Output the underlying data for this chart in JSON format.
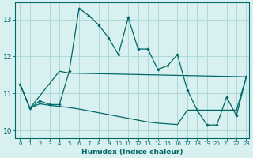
{
  "title": "",
  "xlabel": "Humidex (Indice chaleur)",
  "ylabel": "",
  "bg_color": "#d8f0f0",
  "grid_color": "#b0d8d8",
  "line_color": "#006868",
  "x_min": -0.5,
  "x_max": 23.3,
  "y_min": 9.8,
  "y_max": 13.45,
  "yticks": [
    10,
    11,
    12,
    13
  ],
  "xticks": [
    0,
    1,
    2,
    3,
    4,
    5,
    6,
    7,
    8,
    9,
    10,
    11,
    12,
    13,
    14,
    15,
    16,
    17,
    18,
    19,
    20,
    21,
    22,
    23
  ],
  "series1_x": [
    0,
    1,
    2,
    3,
    4,
    5,
    6,
    7,
    8,
    9,
    10,
    11,
    12,
    13,
    14,
    15,
    16,
    17,
    18,
    19,
    20,
    21,
    22,
    23
  ],
  "series1_y": [
    11.25,
    10.6,
    10.8,
    10.7,
    10.7,
    11.6,
    13.3,
    13.1,
    12.85,
    12.5,
    12.05,
    13.05,
    12.2,
    12.2,
    11.65,
    11.75,
    12.05,
    11.1,
    10.55,
    10.15,
    10.15,
    10.9,
    10.4,
    11.45
  ],
  "series2_x": [
    0,
    1,
    4,
    5,
    23
  ],
  "series2_y": [
    11.25,
    10.6,
    11.6,
    11.55,
    11.45
  ],
  "series3_x": [
    0,
    1,
    2,
    3,
    4,
    5,
    6,
    7,
    8,
    9,
    10,
    11,
    12,
    13,
    14,
    15,
    16,
    17,
    18,
    19,
    20,
    21,
    22,
    23
  ],
  "series3_y": [
    11.25,
    10.6,
    10.72,
    10.68,
    10.65,
    10.62,
    10.58,
    10.53,
    10.48,
    10.43,
    10.38,
    10.33,
    10.28,
    10.23,
    10.2,
    10.18,
    10.16,
    10.55,
    10.55,
    10.55,
    10.55,
    10.55,
    10.55,
    11.45
  ]
}
